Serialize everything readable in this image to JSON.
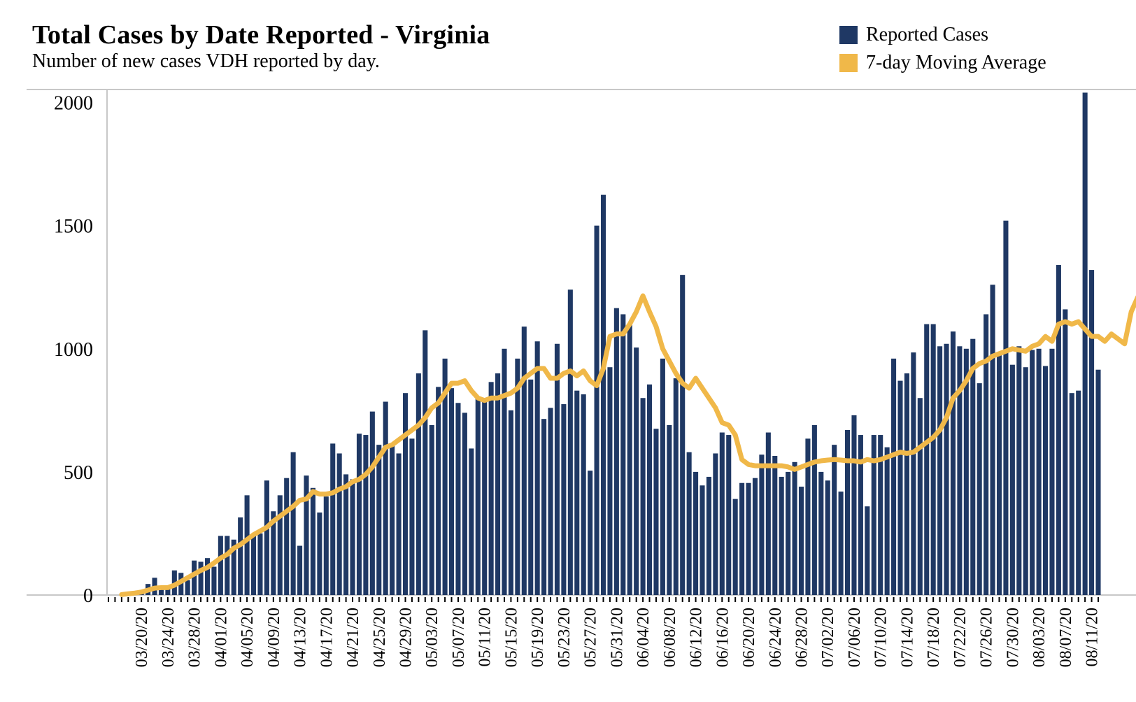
{
  "title": "Total Cases by Date Reported - Virginia",
  "subtitle": "Number of new cases VDH reported by day.",
  "legend": [
    {
      "label": "Reported Cases",
      "color": "#1f3864"
    },
    {
      "label": "7-day Moving Average",
      "color": "#f0b849"
    }
  ],
  "chart_data": {
    "type": "bar",
    "start_date": "03/17/20",
    "x_ticks": [
      "03/20/20",
      "03/24/20",
      "03/28/20",
      "04/01/20",
      "04/05/20",
      "04/09/20",
      "04/13/20",
      "04/17/20",
      "04/21/20",
      "04/25/20",
      "04/29/20",
      "05/03/20",
      "05/07/20",
      "05/11/20",
      "05/15/20",
      "05/19/20",
      "05/23/20",
      "05/27/20",
      "05/31/20",
      "06/04/20",
      "06/08/20",
      "06/12/20",
      "06/16/20",
      "06/20/20",
      "06/24/20",
      "06/28/20",
      "07/02/20",
      "07/06/20",
      "07/10/20",
      "07/14/20",
      "07/18/20",
      "07/22/20",
      "07/26/20",
      "07/30/20",
      "08/03/20",
      "08/07/20",
      "08/11/20"
    ],
    "y_ticks": [
      0,
      500,
      1000,
      1500,
      2000
    ],
    "ylim": [
      0,
      2030
    ],
    "xlim": [
      "03/15/20",
      "08/12/20"
    ],
    "series": [
      {
        "name": "Reported Cases",
        "type": "bar",
        "color": "#1f3864",
        "values": [
          0,
          5,
          10,
          15,
          45,
          70,
          30,
          35,
          100,
          90,
          60,
          140,
          135,
          150,
          115,
          240,
          240,
          225,
          315,
          405,
          250,
          250,
          465,
          340,
          405,
          475,
          580,
          200,
          485,
          435,
          335,
          400,
          615,
          575,
          490,
          470,
          655,
          650,
          745,
          610,
          785,
          610,
          575,
          820,
          635,
          900,
          1075,
          690,
          845,
          960,
          840,
          780,
          740,
          595,
          800,
          790,
          865,
          900,
          1000,
          750,
          960,
          1090,
          875,
          1030,
          715,
          760,
          1020,
          775,
          1240,
          830,
          815,
          505,
          1500,
          1625,
          925,
          1165,
          1140,
          1100,
          1005,
          800,
          855,
          675,
          960,
          690,
          880,
          1300,
          580,
          500,
          445,
          480,
          575,
          660,
          650,
          390,
          455,
          455,
          475,
          570,
          660,
          565,
          480,
          500,
          540,
          440,
          635,
          690,
          500,
          465,
          610,
          420,
          670,
          730,
          650,
          360,
          650,
          650,
          600,
          960,
          870,
          900,
          985,
          800,
          1100,
          1100,
          1010,
          1020,
          1070,
          1010,
          1000,
          1040,
          860,
          1140,
          1260,
          980,
          1520,
          935,
          1010,
          925,
          995,
          1000,
          930,
          1000,
          1340,
          1160,
          820,
          830,
          2040,
          1320,
          915
        ]
      },
      {
        "name": "7-day Moving Average",
        "type": "line",
        "color": "#f0b849",
        "values": [
          2,
          5,
          8,
          12,
          20,
          28,
          30,
          30,
          40,
          55,
          70,
          85,
          100,
          112,
          130,
          150,
          165,
          190,
          205,
          225,
          245,
          260,
          275,
          300,
          320,
          340,
          360,
          385,
          390,
          420,
          410,
          410,
          415,
          430,
          440,
          460,
          470,
          490,
          520,
          560,
          600,
          610,
          630,
          650,
          670,
          690,
          720,
          760,
          780,
          820,
          860,
          860,
          870,
          830,
          800,
          790,
          800,
          800,
          810,
          820,
          840,
          880,
          900,
          920,
          920,
          880,
          880,
          900,
          910,
          890,
          910,
          870,
          850,
          920,
          1050,
          1060,
          1060,
          1100,
          1150,
          1215,
          1150,
          1090,
          1000,
          950,
          900,
          860,
          840,
          880,
          840,
          800,
          760,
          700,
          690,
          650,
          550,
          530,
          525,
          525,
          525,
          525,
          525,
          520,
          510,
          520,
          530,
          540,
          545,
          548,
          550,
          548,
          545,
          545,
          540,
          550,
          545,
          550,
          560,
          570,
          580,
          575,
          580,
          600,
          620,
          640,
          670,
          720,
          800,
          830,
          870,
          920,
          940,
          950,
          970,
          980,
          990,
          1000,
          995,
          990,
          1010,
          1020,
          1050,
          1030,
          1100,
          1110,
          1100,
          1110,
          1080,
          1050,
          1050,
          1030,
          1060,
          1040,
          1020,
          1150,
          1210,
          1200
        ]
      }
    ]
  }
}
